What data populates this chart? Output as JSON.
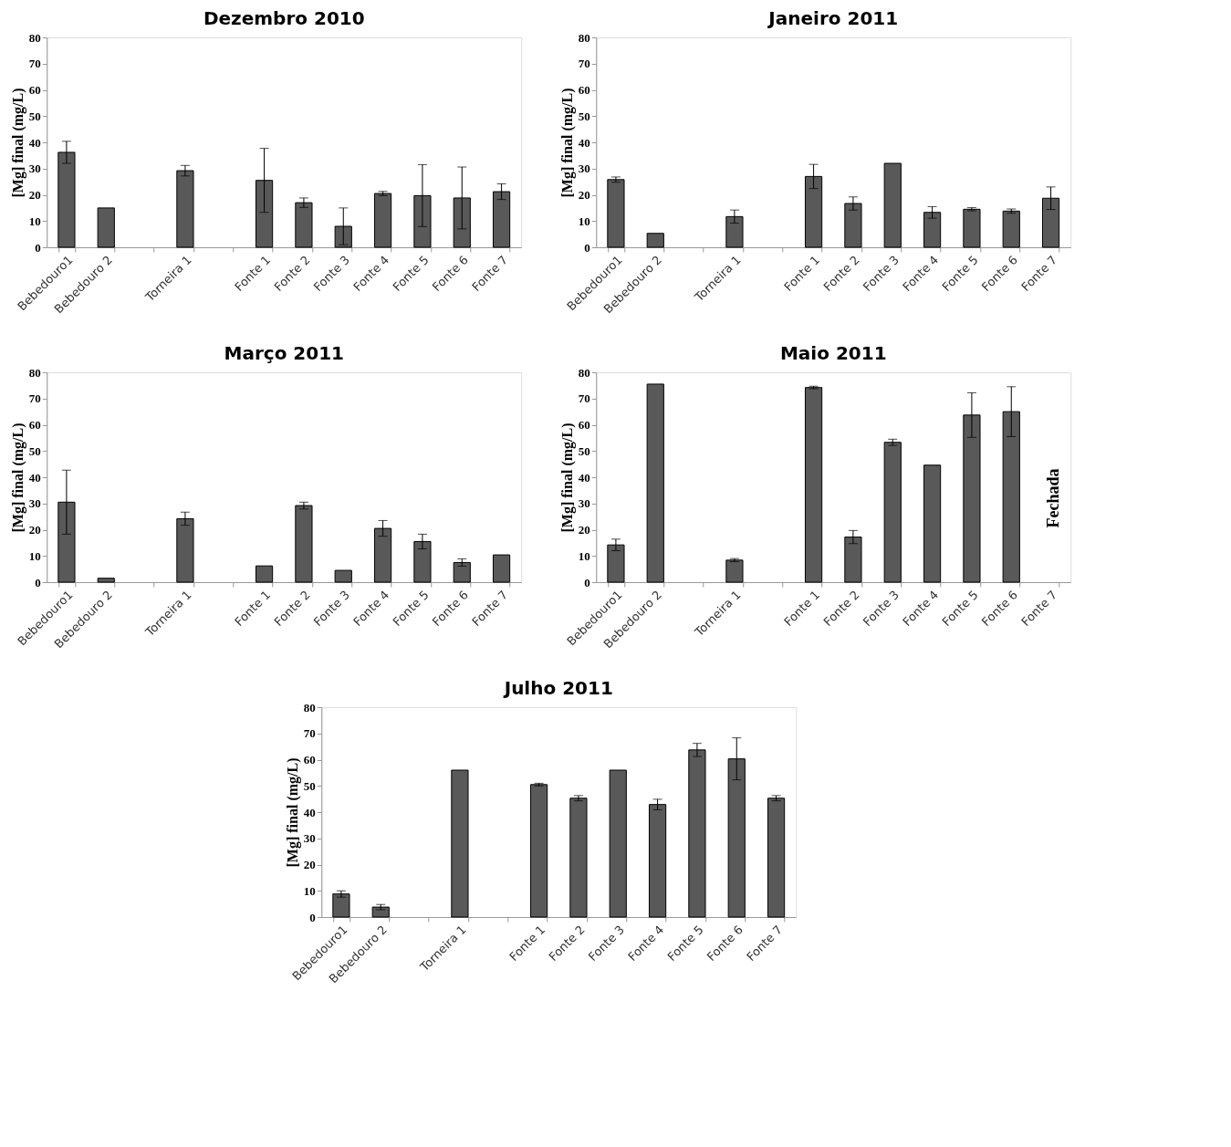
{
  "chart_data": [
    {
      "type": "bar",
      "title": "Dezembro 2010",
      "ylabel": "[Mg] final (mg/L)",
      "categories": [
        "Bebedouro1",
        "Bebedouro 2",
        null,
        "Torneira 1",
        null,
        "Fonte 1",
        "Fonte 2",
        "Fonte 3",
        "Fonte 4",
        "Fonte 5",
        "Fonte 6",
        "Fonte 7"
      ],
      "color": "#595959",
      "values": [
        36.2,
        15,
        null,
        29.2,
        null,
        25.5,
        17,
        8,
        20.5,
        19.7,
        18.8,
        21.2
      ],
      "errors": [
        4.2,
        null,
        null,
        2,
        null,
        12.2,
        1.8,
        7,
        0.8,
        11.8,
        11.8,
        3
      ],
      "ylim": [
        0,
        80
      ],
      "yticks": [
        0,
        10,
        20,
        30,
        40,
        50,
        60,
        70,
        80
      ],
      "grid": false
    },
    {
      "type": "bar",
      "title": "Janeiro 2011",
      "ylabel": "[Mg] final (mg/L)",
      "categories": [
        "Bebedouro1",
        "Bebedouro 2",
        null,
        "Torneira 1",
        null,
        "Fonte 1",
        "Fonte 2",
        "Fonte 3",
        "Fonte 4",
        "Fonte 5",
        "Fonte 6",
        "Fonte 7"
      ],
      "color": "#595959",
      "values": [
        25.8,
        5.3,
        null,
        11.7,
        null,
        27,
        16.7,
        32,
        13.3,
        14.5,
        13.8,
        18.7
      ],
      "errors": [
        1,
        null,
        null,
        2.5,
        null,
        4.6,
        2.5,
        null,
        2.2,
        0.6,
        0.8,
        4.3
      ],
      "ylim": [
        0,
        80
      ],
      "yticks": [
        0,
        10,
        20,
        30,
        40,
        50,
        60,
        70,
        80
      ],
      "grid": false
    },
    {
      "type": "bar",
      "title": "Março 2011",
      "ylabel": "[Mg] final (mg/L)",
      "categories": [
        "Bebedouro1",
        "Bebedouro 2",
        null,
        "Torneira 1",
        null,
        "Fonte 1",
        "Fonte 2",
        "Fonte 3",
        "Fonte 4",
        "Fonte 5",
        "Fonte 6",
        "Fonte 7"
      ],
      "color": "#595959",
      "values": [
        30.5,
        1.5,
        null,
        24.2,
        null,
        6.2,
        29.2,
        4.5,
        20.5,
        15.5,
        7.5,
        10.4
      ],
      "errors": [
        12.2,
        null,
        null,
        2.5,
        null,
        null,
        1.3,
        null,
        3,
        2.8,
        1.4,
        null
      ],
      "ylim": [
        0,
        80
      ],
      "yticks": [
        0,
        10,
        20,
        30,
        40,
        50,
        60,
        70,
        80
      ],
      "grid": false
    },
    {
      "type": "bar",
      "title": "Maio 2011",
      "ylabel": "[Mg] final (mg/L)",
      "categories": [
        "Bebedouro1",
        "Bebedouro 2",
        null,
        "Torneira 1",
        null,
        "Fonte 1",
        "Fonte 2",
        "Fonte 3",
        "Fonte 4",
        "Fonte 5",
        "Fonte 6",
        "Fonte 7"
      ],
      "color": "#595959",
      "values": [
        14.2,
        75.5,
        null,
        8.4,
        null,
        74.2,
        17.2,
        53.3,
        44.6,
        63.7,
        65,
        null
      ],
      "errors": [
        2.2,
        null,
        null,
        0.6,
        null,
        0.5,
        2.5,
        1.2,
        null,
        8.5,
        9.5,
        null
      ],
      "ylim": [
        0,
        80
      ],
      "yticks": [
        0,
        10,
        20,
        30,
        40,
        50,
        60,
        70,
        80
      ],
      "grid": false,
      "annotations": [
        "Fechada"
      ]
    },
    {
      "type": "bar",
      "title": "Julho 2011",
      "ylabel": "[Mg] final (mg/L)",
      "categories": [
        "Bebedouro1",
        "Bebedouro 2",
        null,
        "Torneira 1",
        null,
        "Fonte 1",
        "Fonte 2",
        "Fonte 3",
        "Fonte 4",
        "Fonte 5",
        "Fonte 6",
        "Fonte 7"
      ],
      "color": "#595959",
      "values": [
        8.8,
        3.8,
        null,
        56,
        null,
        50.5,
        45.3,
        56,
        42.9,
        63.7,
        60.3,
        45.3
      ],
      "errors": [
        1.2,
        1,
        null,
        null,
        null,
        0.5,
        1,
        null,
        2,
        2.5,
        8,
        1
      ],
      "ylim": [
        0,
        80
      ],
      "yticks": [
        0,
        10,
        20,
        30,
        40,
        50,
        60,
        70,
        80
      ],
      "grid": false
    }
  ]
}
